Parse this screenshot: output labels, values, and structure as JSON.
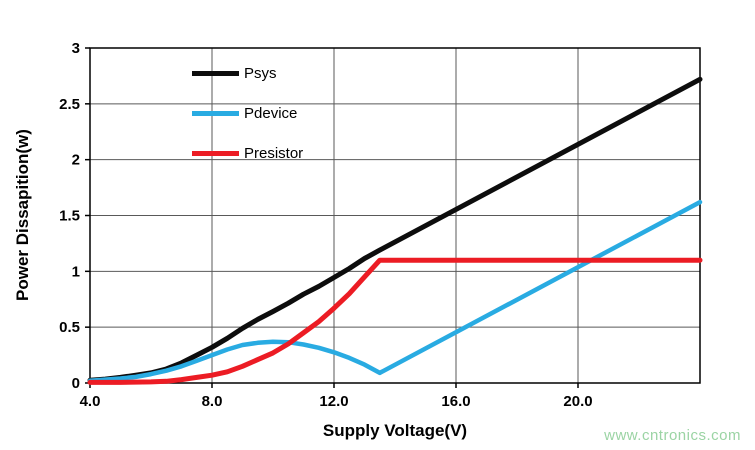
{
  "watermark": {
    "text": "www.cntronics.com",
    "color": "#9bd4a4"
  },
  "chart_data": {
    "type": "line",
    "title": "",
    "xlabel": "Supply Voltage(V)",
    "ylabel": "Power Dissapition(w)",
    "xlim": [
      4,
      24
    ],
    "ylim": [
      0,
      3
    ],
    "grid": true,
    "grid_color": "#595959",
    "axis_color": "#000000",
    "legend_position": "top-left-inside",
    "xticks": {
      "values": [
        4,
        8,
        12,
        16,
        20
      ],
      "labels": [
        "4.0",
        "8.0",
        "12.0",
        "16.0",
        "20.0"
      ]
    },
    "yticks": {
      "values": [
        0,
        0.5,
        1,
        1.5,
        2,
        2.5,
        3
      ],
      "labels": [
        "0",
        "0.5",
        "1",
        "1.5",
        "2",
        "2.5",
        "3"
      ]
    },
    "series": [
      {
        "name": "Psys",
        "color": "#0d0d0d",
        "width": 5,
        "points": [
          [
            4,
            0.025
          ],
          [
            4.5,
            0.035
          ],
          [
            5,
            0.05
          ],
          [
            5.5,
            0.07
          ],
          [
            6,
            0.09
          ],
          [
            6.5,
            0.125
          ],
          [
            7,
            0.18
          ],
          [
            7.5,
            0.25
          ],
          [
            8,
            0.32
          ],
          [
            8.5,
            0.4
          ],
          [
            9,
            0.49
          ],
          [
            9.5,
            0.57
          ],
          [
            10,
            0.64
          ],
          [
            10.5,
            0.715
          ],
          [
            11,
            0.795
          ],
          [
            11.5,
            0.865
          ],
          [
            12,
            0.945
          ],
          [
            12.5,
            1.025
          ],
          [
            13,
            1.115
          ],
          [
            13.5,
            1.19
          ],
          [
            24,
            2.72
          ]
        ]
      },
      {
        "name": "Pdevice",
        "color": "#29abe2",
        "width": 4.5,
        "points": [
          [
            4,
            0.02
          ],
          [
            4.5,
            0.03
          ],
          [
            5,
            0.04
          ],
          [
            5.5,
            0.055
          ],
          [
            6,
            0.08
          ],
          [
            6.5,
            0.11
          ],
          [
            7,
            0.15
          ],
          [
            7.5,
            0.2
          ],
          [
            8,
            0.25
          ],
          [
            8.5,
            0.3
          ],
          [
            9,
            0.34
          ],
          [
            9.5,
            0.36
          ],
          [
            10,
            0.37
          ],
          [
            10.5,
            0.365
          ],
          [
            11,
            0.345
          ],
          [
            11.5,
            0.315
          ],
          [
            12,
            0.275
          ],
          [
            12.5,
            0.225
          ],
          [
            13,
            0.165
          ],
          [
            13.5,
            0.09
          ],
          [
            24,
            1.62
          ]
        ]
      },
      {
        "name": "Presistor",
        "color": "#ec1c24",
        "width": 5,
        "points": [
          [
            4,
            0.005
          ],
          [
            5,
            0.005
          ],
          [
            6,
            0.01
          ],
          [
            6.5,
            0.015
          ],
          [
            7,
            0.03
          ],
          [
            7.5,
            0.05
          ],
          [
            8,
            0.07
          ],
          [
            8.5,
            0.1
          ],
          [
            9,
            0.15
          ],
          [
            9.5,
            0.21
          ],
          [
            10,
            0.27
          ],
          [
            10.5,
            0.35
          ],
          [
            11,
            0.45
          ],
          [
            11.5,
            0.55
          ],
          [
            12,
            0.67
          ],
          [
            12.5,
            0.8
          ],
          [
            13,
            0.95
          ],
          [
            13.5,
            1.1
          ],
          [
            24,
            1.1
          ]
        ]
      }
    ]
  }
}
